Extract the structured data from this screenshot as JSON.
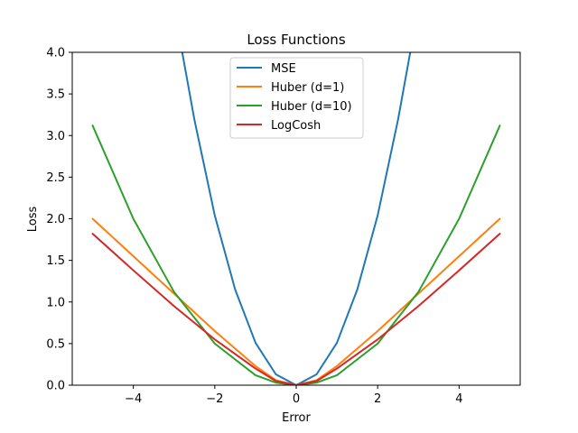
{
  "chart_data": {
    "type": "line",
    "title": "Loss Functions",
    "xlabel": "Error",
    "ylabel": "Loss",
    "xlim": [
      -5.5,
      5.5
    ],
    "ylim": [
      0,
      4
    ],
    "xticks": [
      -4,
      -2,
      0,
      2,
      4
    ],
    "xtick_labels": [
      "−4",
      "−2",
      "0",
      "2",
      "4"
    ],
    "yticks": [
      0,
      0.5,
      1,
      1.5,
      2,
      2.5,
      3,
      3.5,
      4
    ],
    "ytick_labels": [
      "0.0",
      "0.5",
      "1.0",
      "1.5",
      "2.0",
      "2.5",
      "3.0",
      "3.5",
      "4.0"
    ],
    "grid": false,
    "legend_position": "top-center",
    "series": [
      {
        "name": "MSE",
        "color": "#1f77b4",
        "x": [
          -2.8,
          -2.5,
          -2,
          -1.5,
          -1,
          -0.5,
          0,
          0.5,
          1,
          1.5,
          2,
          2.5,
          2.8
        ],
        "y": [
          4.0,
          3.19,
          2.04,
          1.15,
          0.51,
          0.13,
          0.0,
          0.13,
          0.51,
          1.15,
          2.04,
          3.19,
          4.0
        ]
      },
      {
        "name": "Huber (d=1)",
        "color": "#ff7f0e",
        "x": [
          -5,
          -4,
          -3,
          -2,
          -1,
          -0.5,
          0,
          0.5,
          1,
          2,
          3,
          4,
          5
        ],
        "y": [
          2.0,
          1.55,
          1.1,
          0.65,
          0.23,
          0.06,
          0.0,
          0.06,
          0.23,
          0.65,
          1.1,
          1.55,
          2.0
        ]
      },
      {
        "name": "Huber (d=10)",
        "color": "#2ca02c",
        "x": [
          -5,
          -4,
          -3,
          -2,
          -1,
          -0.5,
          0,
          0.5,
          1,
          2,
          3,
          4,
          5
        ],
        "y": [
          3.12,
          2.0,
          1.12,
          0.5,
          0.12,
          0.03,
          0.0,
          0.03,
          0.12,
          0.5,
          1.12,
          2.0,
          3.12
        ]
      },
      {
        "name": "LogCosh",
        "color": "#d62728",
        "x": [
          -5,
          -4,
          -3,
          -2,
          -1,
          -0.5,
          0,
          0.5,
          1,
          2,
          3,
          4,
          5
        ],
        "y": [
          1.82,
          1.38,
          0.95,
          0.55,
          0.2,
          0.05,
          0.0,
          0.05,
          0.2,
          0.55,
          0.95,
          1.38,
          1.82
        ]
      }
    ]
  }
}
